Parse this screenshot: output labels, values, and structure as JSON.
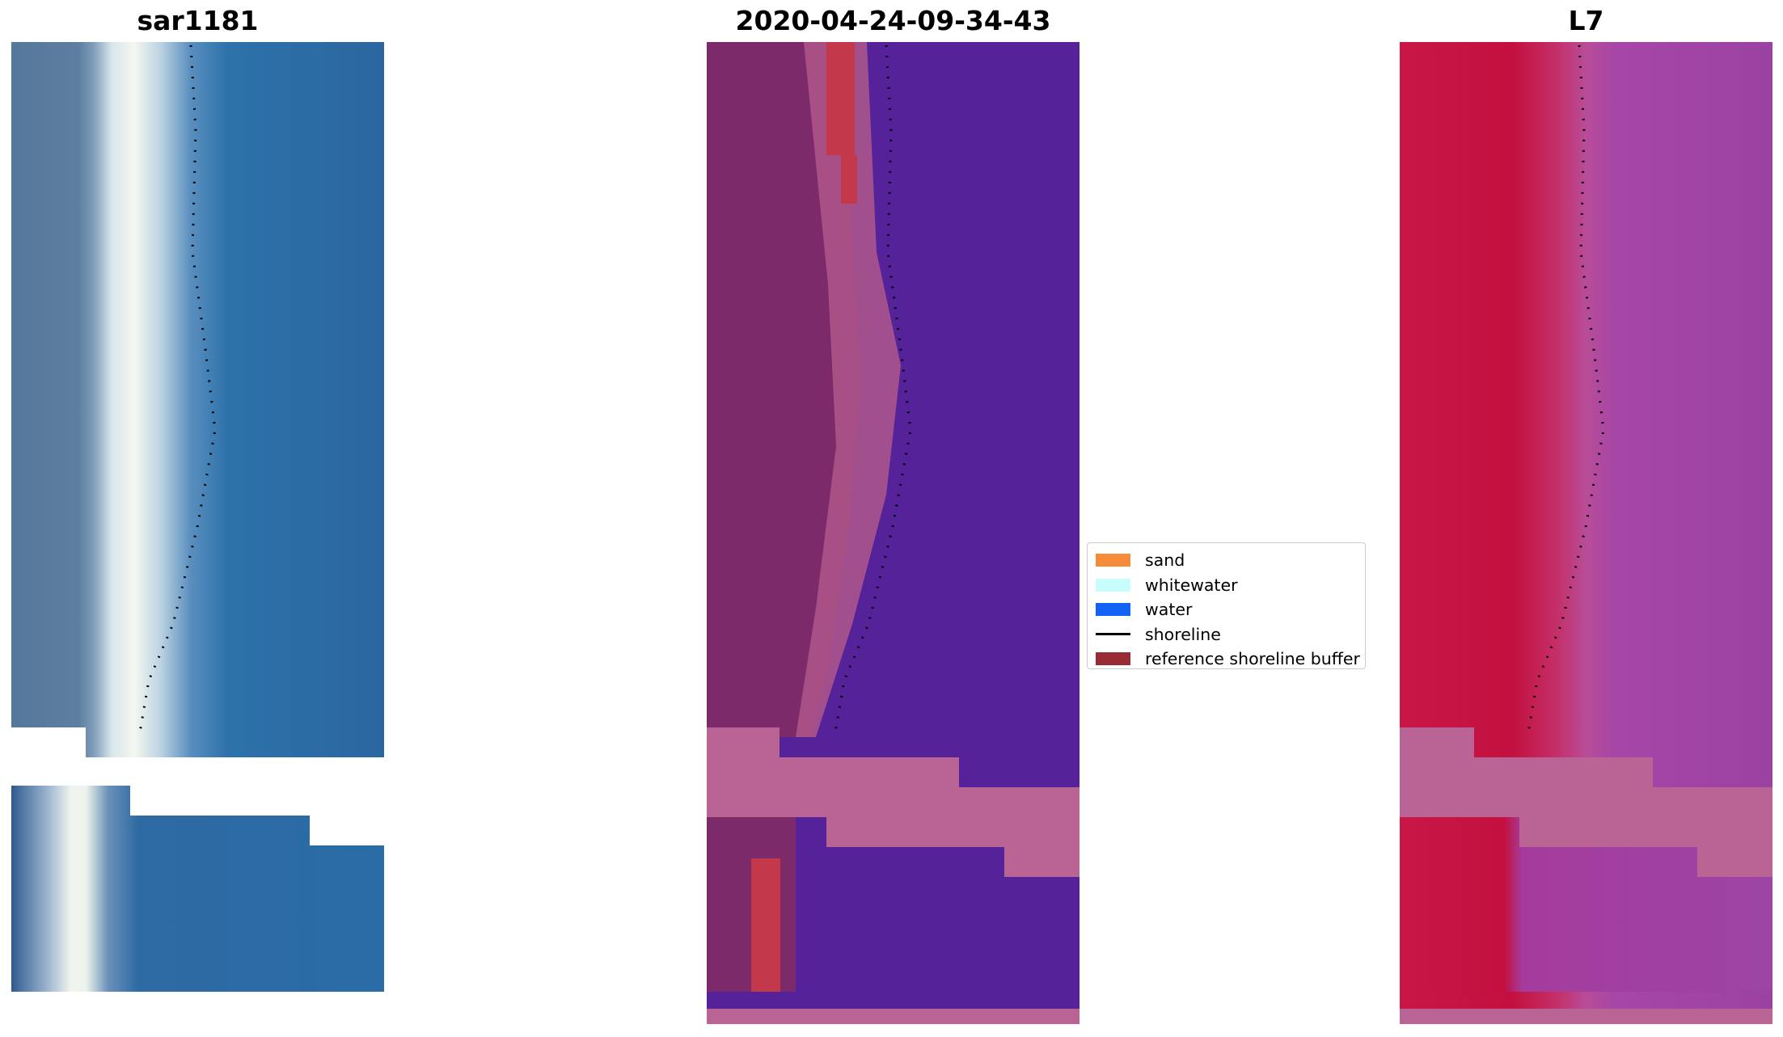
{
  "panels": [
    {
      "title": "sar1181"
    },
    {
      "title": "2020-04-24-09-34-43"
    },
    {
      "title": "L7"
    }
  ],
  "legend": {
    "items": [
      {
        "label": "sand",
        "kind": "patch",
        "color": "#f68b3c"
      },
      {
        "label": "whitewater",
        "kind": "patch",
        "color": "#c8fdfd"
      },
      {
        "label": "water",
        "kind": "patch",
        "color": "#1262f6"
      },
      {
        "label": "shoreline",
        "kind": "line",
        "color": "#000000"
      },
      {
        "label": "reference shoreline buffer",
        "kind": "patch",
        "color": "#992b37"
      }
    ]
  },
  "colors": {
    "ocean_rgb": "#2b6fa6",
    "land_rgb": "#55779a",
    "surf_rgb": "#eef4f0",
    "water_class": "#55229a",
    "land_class": "#7c2a69",
    "buffer_overlay": "#ba6395",
    "ref_shoreline_red": "#c3384b",
    "l7_land": "#c31040",
    "l7_ocean": "#9a42a2",
    "nodata": "#ffffff"
  }
}
